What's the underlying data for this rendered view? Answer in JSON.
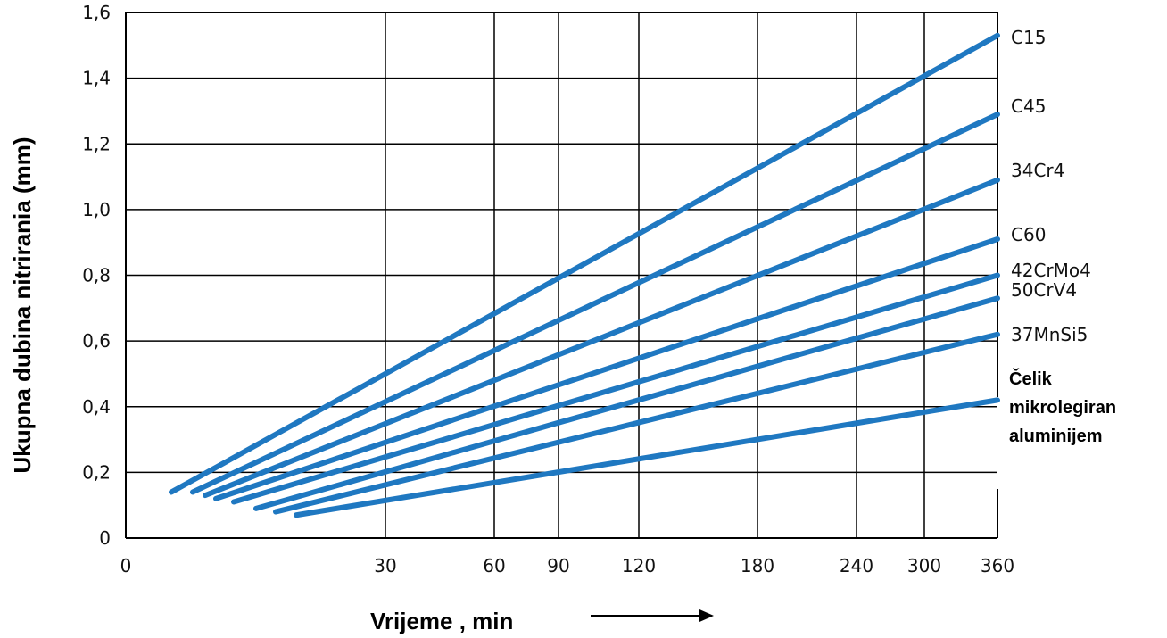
{
  "chart_data": {
    "type": "line",
    "title": "",
    "xlabel": "Vrijeme , min",
    "ylabel": "Ukupna dubina nitrirania (mm)",
    "x_ticks": [
      0,
      30,
      60,
      90,
      120,
      180,
      240,
      300,
      360
    ],
    "x_tick_labels": [
      "0",
      "30",
      "60",
      "90",
      "120",
      "180",
      "240",
      "300",
      "360"
    ],
    "y_ticks": [
      0,
      0.2,
      0.4,
      0.6,
      0.8,
      1.0,
      1.2,
      1.4,
      1.6
    ],
    "y_tick_labels": [
      "0",
      "0,2",
      "0,4",
      "0,6",
      "0,8",
      "1,0",
      "1,2",
      "1,4",
      "1,6"
    ],
    "ylim": [
      0,
      1.6
    ],
    "xlim": [
      0,
      360
    ],
    "x_scale": "logarithmic-like (non-uniform)",
    "grid": true,
    "line_color": "#1f78c1",
    "series": [
      {
        "name": "C15",
        "x": [
          5,
          360
        ],
        "y": [
          0.14,
          1.53
        ]
      },
      {
        "name": "C45",
        "x": [
          7,
          360
        ],
        "y": [
          0.14,
          1.29
        ]
      },
      {
        "name": "34Cr4",
        "x": [
          8,
          360
        ],
        "y": [
          0.13,
          1.09
        ]
      },
      {
        "name": "C60",
        "x": [
          9,
          360
        ],
        "y": [
          0.12,
          0.91
        ]
      },
      {
        "name": "42CrMo4",
        "x": [
          11,
          360
        ],
        "y": [
          0.11,
          0.8
        ]
      },
      {
        "name": "50CrV4",
        "x": [
          13,
          360
        ],
        "y": [
          0.09,
          0.73
        ]
      },
      {
        "name": "37MnSi5",
        "x": [
          15,
          360
        ],
        "y": [
          0.08,
          0.62
        ]
      },
      {
        "name": "Čelik mikrolegiran aluminijem",
        "name_lines": [
          "Čelik",
          "mikrolegiran",
          "aluminijem"
        ],
        "x": [
          17,
          360
        ],
        "y": [
          0.07,
          0.42
        ]
      }
    ]
  }
}
